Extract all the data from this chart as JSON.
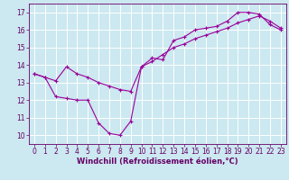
{
  "xlabel": "Windchill (Refroidissement éolien,°C)",
  "bg_color": "#cce8f0",
  "line_color": "#990099",
  "grid_color": "#aaddee",
  "xlim": [
    -0.5,
    23.5
  ],
  "ylim": [
    9.5,
    17.5
  ],
  "yticks": [
    10,
    11,
    12,
    13,
    14,
    15,
    16,
    17
  ],
  "xticks": [
    0,
    1,
    2,
    3,
    4,
    5,
    6,
    7,
    8,
    9,
    10,
    11,
    12,
    13,
    14,
    15,
    16,
    17,
    18,
    19,
    20,
    21,
    22,
    23
  ],
  "series1_x": [
    0,
    1,
    2,
    3,
    4,
    5,
    6,
    7,
    8,
    9,
    10,
    11,
    12,
    13,
    14,
    15,
    16,
    17,
    18,
    19,
    20,
    21,
    22,
    23
  ],
  "series1_y": [
    13.5,
    13.3,
    12.2,
    12.1,
    12.0,
    12.0,
    10.7,
    10.1,
    10.0,
    10.8,
    13.9,
    14.4,
    14.3,
    15.4,
    15.6,
    16.0,
    16.1,
    16.2,
    16.5,
    17.0,
    17.0,
    16.9,
    16.3,
    16.0
  ],
  "series2_x": [
    0,
    1,
    2,
    3,
    4,
    5,
    6,
    7,
    8,
    9,
    10,
    11,
    12,
    13,
    14,
    15,
    16,
    17,
    18,
    19,
    20,
    21,
    22,
    23
  ],
  "series2_y": [
    13.5,
    13.3,
    13.1,
    13.9,
    13.5,
    13.3,
    13.0,
    12.8,
    12.6,
    12.5,
    13.9,
    14.2,
    14.6,
    15.0,
    15.2,
    15.5,
    15.7,
    15.9,
    16.1,
    16.4,
    16.6,
    16.8,
    16.5,
    16.1
  ],
  "xlabel_fontsize": 6.0,
  "tick_fontsize": 5.5
}
